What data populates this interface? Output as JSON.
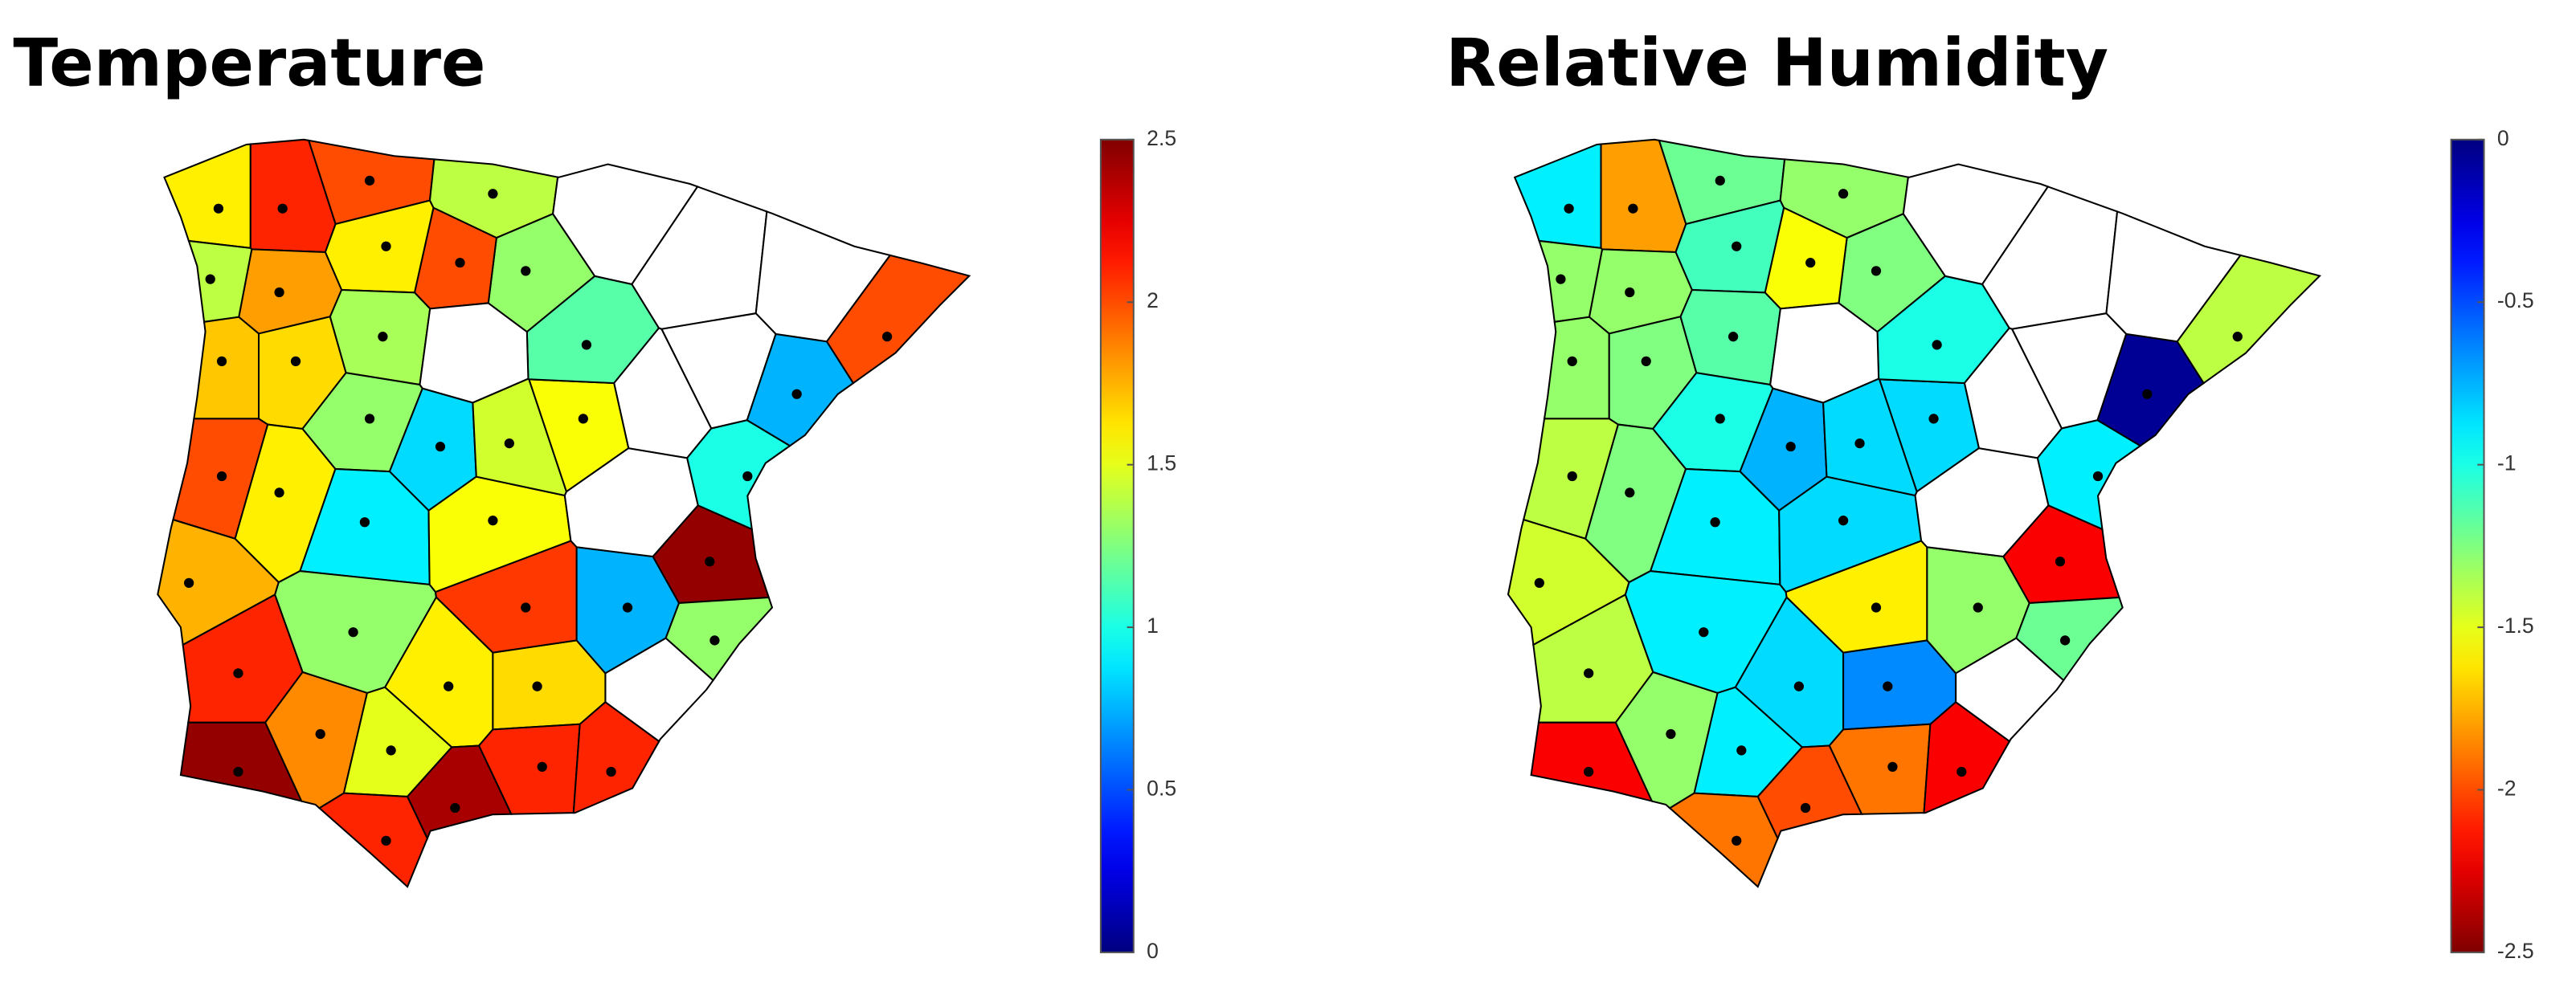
{
  "maps": [
    {
      "title": "Temperature",
      "colormap": "jet",
      "clim": [
        0,
        2.5
      ],
      "ticks": [
        0,
        0.5,
        1,
        1.5,
        2,
        2.5
      ],
      "values": [
        1.6,
        2.1,
        2.0,
        1.4,
        1.3,
        2.0,
        1.6,
        1.8,
        1.4,
        1.7,
        1.65,
        1.35,
        1.3,
        0.85,
        0.9,
        1.6,
        2.0,
        1.75,
        2.1,
        2.45,
        1.85,
        1.5,
        1.6,
        1.65,
        2.1,
        2.1,
        2.4,
        2.1,
        1.3,
        2.05,
        1.55,
        1.45,
        1.55,
        1.15,
        0.75,
        2.45,
        1.0,
        0.75,
        2.0,
        1.3,
        null,
        null,
        null,
        null,
        null,
        null,
        null,
        null
      ]
    },
    {
      "title": "Relative Humidity",
      "colormap": "jet_r",
      "clim": [
        -2.5,
        0
      ],
      "ticks": [
        -2.5,
        -2,
        -1.5,
        -1,
        -0.5,
        0
      ],
      "values": [
        -0.9,
        -1.8,
        -1.2,
        -1.3,
        -1.25,
        -1.55,
        -1.1,
        -1.3,
        -1.3,
        -1.3,
        -1.25,
        -1.15,
        -1.0,
        -0.75,
        -0.9,
        -1.25,
        -1.4,
        -1.45,
        -1.4,
        -2.2,
        -1.3,
        -0.9,
        -0.85,
        -0.65,
        -1.9,
        -2.2,
        -2.0,
        -1.9,
        -0.9,
        -1.6,
        -0.85,
        -0.85,
        -0.85,
        -1.0,
        -1.3,
        -2.2,
        -0.9,
        -0.05,
        -1.4,
        -1.2,
        null,
        null,
        null,
        null,
        null,
        null,
        null,
        null
      ]
    }
  ]
}
